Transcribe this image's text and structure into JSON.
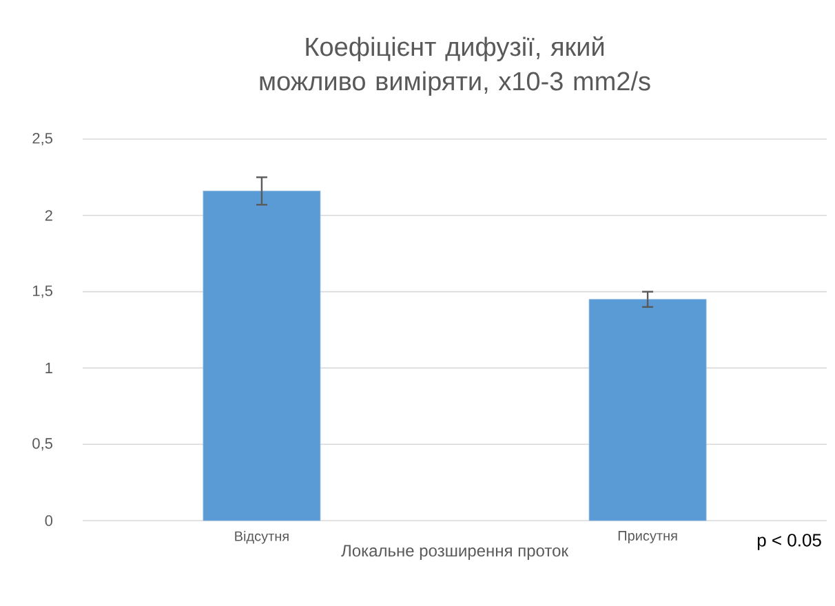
{
  "chart_data": {
    "type": "bar",
    "title": "Коефіцієнт дифузії, який можливо виміряти, x10-3 mm2/s",
    "xlabel": "Локальне розширення проток",
    "categories": [
      "Відсутня",
      "Присутня"
    ],
    "values": [
      2.16,
      1.45
    ],
    "errors": [
      0.09,
      0.05
    ],
    "color": "#5b9bd5",
    "ylim": [
      0,
      2.5
    ],
    "yticks": [
      0,
      {
        "value": 0.5,
        "label": "0,5"
      },
      1,
      {
        "value": 1.5,
        "label": "1,5"
      },
      2,
      {
        "value": 2.5,
        "label": "2,5"
      }
    ],
    "grid": "y",
    "annotations": [
      "p < 0.05"
    ]
  }
}
